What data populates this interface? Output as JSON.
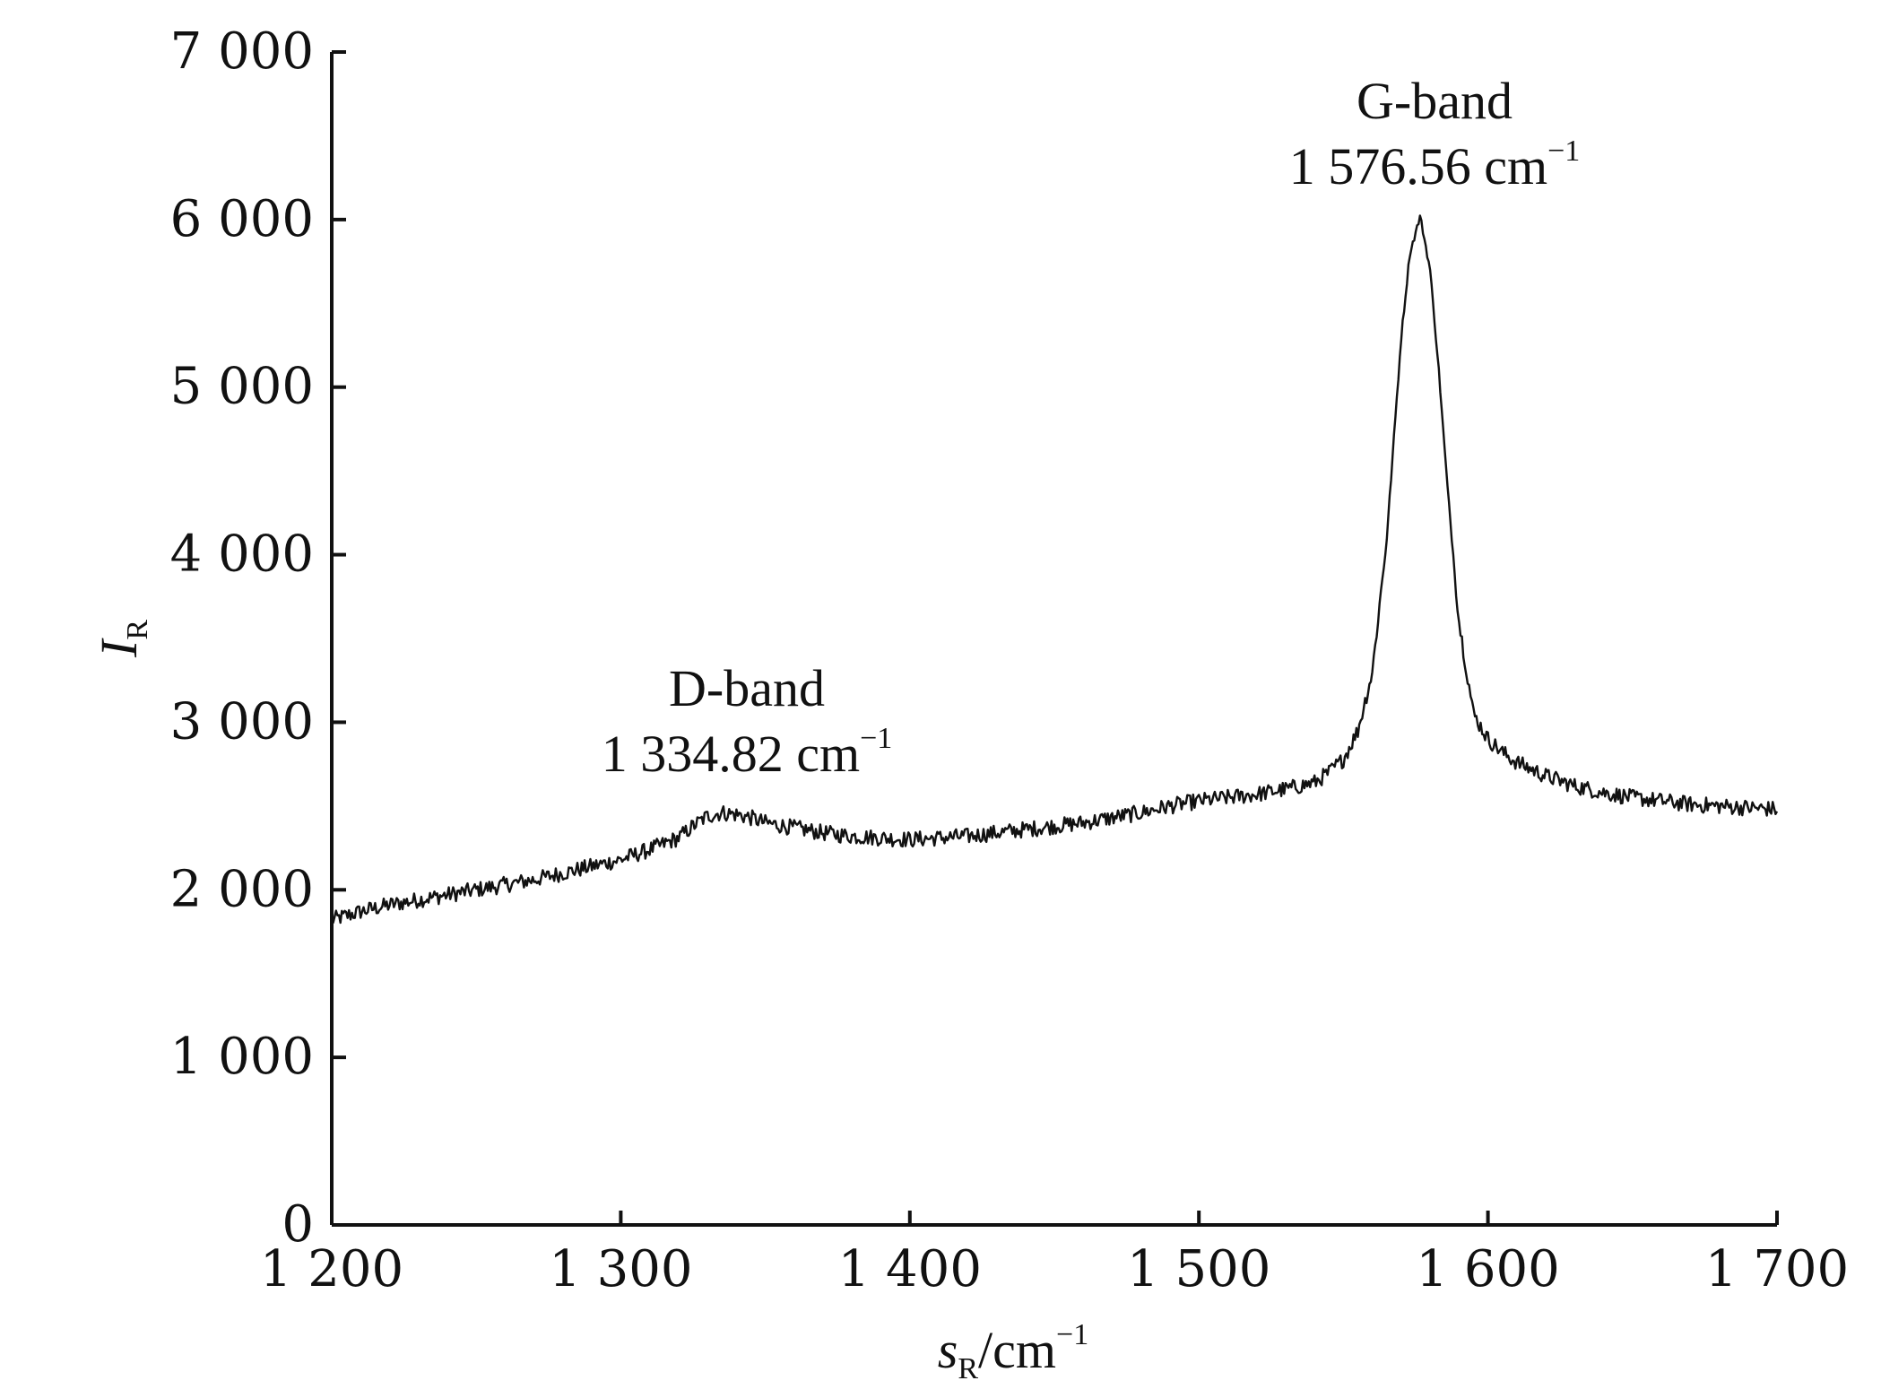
{
  "chart_data": {
    "type": "line",
    "xlabel": {
      "base": "s",
      "sub": "R",
      "unit": "/cm",
      "sup": "−1"
    },
    "ylabel": {
      "base": "I",
      "sub": "R"
    },
    "xlim": [
      1200,
      1700
    ],
    "ylim": [
      0,
      7000
    ],
    "x_ticks": [
      1200,
      1300,
      1400,
      1500,
      1600,
      1700
    ],
    "x_tick_labels": [
      "1 200",
      "1 300",
      "1 400",
      "1 500",
      "1 600",
      "1 700"
    ],
    "y_ticks": [
      0,
      1000,
      2000,
      3000,
      4000,
      5000,
      6000,
      7000
    ],
    "y_tick_labels": [
      "0",
      "1 000",
      "2 000",
      "3 000",
      "4 000",
      "5 000",
      "6 000",
      "7 000"
    ],
    "grid": false,
    "series": [
      {
        "x": [
          1200,
          1210,
          1220,
          1230,
          1240,
          1250,
          1260,
          1270,
          1280,
          1290,
          1300,
          1310,
          1320,
          1325,
          1330,
          1335,
          1340,
          1345,
          1350,
          1360,
          1370,
          1380,
          1390,
          1400,
          1410,
          1420,
          1430,
          1440,
          1450,
          1460,
          1470,
          1480,
          1490,
          1500,
          1510,
          1520,
          1530,
          1540,
          1545,
          1550,
          1555,
          1560,
          1565,
          1570,
          1573,
          1576.56,
          1580,
          1583,
          1586,
          1590,
          1595,
          1600,
          1605,
          1610,
          1620,
          1630,
          1640,
          1650,
          1660,
          1670,
          1680,
          1690,
          1700
        ],
        "y": [
          1820,
          1870,
          1910,
          1940,
          1970,
          2000,
          2030,
          2060,
          2100,
          2140,
          2180,
          2240,
          2310,
          2380,
          2440,
          2460,
          2450,
          2430,
          2400,
          2370,
          2340,
          2320,
          2310,
          2300,
          2310,
          2320,
          2340,
          2360,
          2380,
          2400,
          2430,
          2460,
          2500,
          2530,
          2550,
          2570,
          2600,
          2640,
          2700,
          2780,
          2950,
          3300,
          4100,
          5300,
          5800,
          6020,
          5700,
          5100,
          4400,
          3600,
          3050,
          2900,
          2820,
          2760,
          2680,
          2620,
          2580,
          2550,
          2530,
          2510,
          2500,
          2490,
          2480
        ]
      }
    ],
    "annotations": [
      {
        "label": "D-band",
        "value": "1 334.82 cm",
        "sup": "−1",
        "x": 1334.82
      },
      {
        "label": "G-band",
        "value": "1 576.56 cm",
        "sup": "−1",
        "x": 1576.56
      }
    ]
  }
}
